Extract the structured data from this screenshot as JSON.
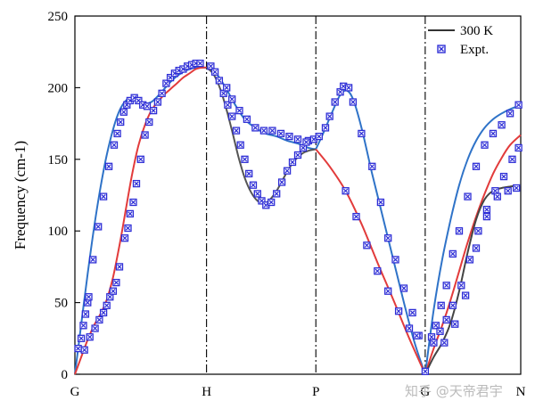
{
  "chart_data": {
    "type": "line",
    "title": "",
    "xlabel": "",
    "ylabel": "Frequency (cm-1)",
    "ylim": [
      0,
      250
    ],
    "xlim": [
      0,
      4.2
    ],
    "yticks": [
      0,
      50,
      100,
      150,
      200,
      250
    ],
    "high_symmetry_points": [
      {
        "label": "G",
        "x": 0.0
      },
      {
        "label": "H",
        "x": 1.24
      },
      {
        "label": "P",
        "x": 2.27
      },
      {
        "label": "G",
        "x": 3.3
      },
      {
        "label": "N",
        "x": 4.2
      }
    ],
    "grid": false,
    "legend_position": "top-right",
    "legend": [
      {
        "label": "300 K",
        "kind": "line",
        "color": "#333333"
      },
      {
        "label": "Expt.",
        "kind": "marker",
        "color": "#2d2dd6"
      }
    ],
    "series": [
      {
        "name": "300 K",
        "color": "#2f73c8",
        "x": [
          0,
          0.06,
          0.12,
          0.18,
          0.24,
          0.3,
          0.36,
          0.42,
          0.48,
          0.54,
          0.6,
          0.66,
          0.72,
          0.78,
          0.84,
          0.9,
          0.96,
          1.02,
          1.08,
          1.14,
          1.2,
          1.24
        ],
        "y": [
          0,
          35,
          70,
          102,
          130,
          153,
          171,
          184,
          191,
          193,
          191,
          189,
          190,
          194,
          199,
          204,
          208,
          211,
          213,
          214,
          214,
          214
        ]
      },
      {
        "name": "300 K",
        "color": "#e23b3b",
        "x": [
          0,
          0.06,
          0.12,
          0.18,
          0.24,
          0.3,
          0.36,
          0.42,
          0.48,
          0.54,
          0.6,
          0.66,
          0.72,
          0.78,
          0.84,
          0.9,
          0.96,
          1.02,
          1.08,
          1.14,
          1.2,
          1.24
        ],
        "y": [
          0,
          12,
          24,
          34,
          42,
          52,
          68,
          90,
          115,
          140,
          160,
          174,
          184,
          190,
          195,
          199,
          203,
          207,
          210,
          213,
          214,
          214
        ]
      },
      {
        "name": "300 K",
        "color": "#2f73c8",
        "x": [
          1.24,
          1.33,
          1.42,
          1.51,
          1.6,
          1.7,
          1.8,
          1.9,
          2.0,
          2.1,
          2.2,
          2.27
        ],
        "y": [
          214,
          210,
          200,
          188,
          178,
          172,
          168,
          166,
          163,
          161,
          158,
          157
        ]
      },
      {
        "name": "300 K",
        "color": "#555555",
        "x": [
          1.24,
          1.3,
          1.36,
          1.42,
          1.48,
          1.54,
          1.6,
          1.66,
          1.72,
          1.78,
          1.84,
          1.9,
          1.96,
          2.02,
          2.08,
          2.14,
          2.2,
          2.27
        ],
        "y": [
          214,
          210,
          201,
          187,
          170,
          152,
          137,
          127,
          121,
          119,
          122,
          128,
          136,
          144,
          150,
          154,
          156,
          157
        ]
      },
      {
        "name": "300 K",
        "color": "#2f73c8",
        "x": [
          2.27,
          2.35,
          2.43,
          2.5,
          2.56,
          2.62,
          2.7,
          2.8,
          2.9,
          3.0,
          3.1,
          3.2,
          3.3
        ],
        "y": [
          157,
          170,
          184,
          195,
          198,
          192,
          172,
          140,
          110,
          80,
          50,
          22,
          0
        ]
      },
      {
        "name": "300 K",
        "color": "#e23b3b",
        "x": [
          2.27,
          2.4,
          2.55,
          2.7,
          2.85,
          3.0,
          3.15,
          3.3
        ],
        "y": [
          157,
          145,
          128,
          105,
          78,
          52,
          25,
          0
        ]
      },
      {
        "name": "300 K",
        "color": "#2f73c8",
        "x": [
          3.3,
          3.38,
          3.46,
          3.54,
          3.62,
          3.7,
          3.78,
          3.86,
          3.94,
          4.02,
          4.1,
          4.2
        ],
        "y": [
          0,
          45,
          80,
          108,
          132,
          150,
          163,
          172,
          178,
          182,
          185,
          188
        ]
      },
      {
        "name": "300 K",
        "color": "#e23b3b",
        "x": [
          3.3,
          3.38,
          3.46,
          3.54,
          3.62,
          3.7,
          3.78,
          3.86,
          3.94,
          4.02,
          4.1,
          4.2
        ],
        "y": [
          0,
          18,
          34,
          52,
          72,
          92,
          110,
          126,
          140,
          151,
          160,
          167
        ]
      },
      {
        "name": "300 K",
        "color": "#444444",
        "x": [
          3.3,
          3.38,
          3.46,
          3.54,
          3.62,
          3.7,
          3.78,
          3.86,
          3.94,
          4.02,
          4.1,
          4.2
        ],
        "y": [
          0,
          12,
          22,
          36,
          58,
          85,
          108,
          122,
          128,
          130,
          131,
          132
        ]
      }
    ],
    "expt": {
      "name": "Expt.",
      "color": "#2d2dd6",
      "points": [
        [
          0.03,
          18
        ],
        [
          0.06,
          25
        ],
        [
          0.08,
          34
        ],
        [
          0.1,
          42
        ],
        [
          0.12,
          50
        ],
        [
          0.13,
          54
        ],
        [
          0.17,
          80
        ],
        [
          0.22,
          103
        ],
        [
          0.27,
          124
        ],
        [
          0.32,
          145
        ],
        [
          0.37,
          160
        ],
        [
          0.4,
          168
        ],
        [
          0.43,
          176
        ],
        [
          0.46,
          183
        ],
        [
          0.49,
          188
        ],
        [
          0.52,
          191
        ],
        [
          0.56,
          193
        ],
        [
          0.6,
          191
        ],
        [
          0.64,
          188
        ],
        [
          0.68,
          187
        ],
        [
          0.09,
          17
        ],
        [
          0.14,
          26
        ],
        [
          0.19,
          32
        ],
        [
          0.23,
          38
        ],
        [
          0.27,
          43
        ],
        [
          0.3,
          48
        ],
        [
          0.33,
          54
        ],
        [
          0.36,
          58
        ],
        [
          0.39,
          64
        ],
        [
          0.42,
          75
        ],
        [
          0.47,
          95
        ],
        [
          0.5,
          102
        ],
        [
          0.52,
          112
        ],
        [
          0.55,
          120
        ],
        [
          0.58,
          133
        ],
        [
          0.62,
          150
        ],
        [
          0.66,
          167
        ],
        [
          0.7,
          176
        ],
        [
          0.74,
          184
        ],
        [
          0.78,
          190
        ],
        [
          0.82,
          196
        ],
        [
          0.86,
          203
        ],
        [
          0.9,
          207
        ],
        [
          0.94,
          210
        ],
        [
          0.98,
          212
        ],
        [
          1.02,
          213
        ],
        [
          1.06,
          215
        ],
        [
          1.1,
          216
        ],
        [
          1.14,
          217
        ],
        [
          1.18,
          217
        ],
        [
          1.28,
          215
        ],
        [
          1.32,
          211
        ],
        [
          1.36,
          205
        ],
        [
          1.4,
          196
        ],
        [
          1.44,
          188
        ],
        [
          1.48,
          180
        ],
        [
          1.52,
          170
        ],
        [
          1.56,
          160
        ],
        [
          1.6,
          150
        ],
        [
          1.64,
          140
        ],
        [
          1.68,
          132
        ],
        [
          1.72,
          126
        ],
        [
          1.76,
          121
        ],
        [
          1.8,
          118
        ],
        [
          1.85,
          120
        ],
        [
          1.9,
          126
        ],
        [
          1.95,
          134
        ],
        [
          2.0,
          142
        ],
        [
          2.05,
          148
        ],
        [
          2.1,
          153
        ],
        [
          2.15,
          158
        ],
        [
          2.2,
          163
        ],
        [
          1.43,
          200
        ],
        [
          1.48,
          192
        ],
        [
          1.55,
          184
        ],
        [
          1.62,
          178
        ],
        [
          1.7,
          172
        ],
        [
          1.78,
          170
        ],
        [
          1.86,
          170
        ],
        [
          1.94,
          168
        ],
        [
          2.02,
          166
        ],
        [
          2.1,
          164
        ],
        [
          2.18,
          162
        ],
        [
          2.25,
          164
        ],
        [
          2.3,
          166
        ],
        [
          2.36,
          172
        ],
        [
          2.4,
          180
        ],
        [
          2.45,
          190
        ],
        [
          2.5,
          197
        ],
        [
          2.53,
          201
        ],
        [
          2.58,
          200
        ],
        [
          2.62,
          190
        ],
        [
          2.7,
          168
        ],
        [
          2.8,
          145
        ],
        [
          2.88,
          120
        ],
        [
          2.95,
          95
        ],
        [
          3.02,
          80
        ],
        [
          3.1,
          60
        ],
        [
          3.18,
          43
        ],
        [
          3.24,
          27
        ],
        [
          3.3,
          2
        ],
        [
          2.55,
          128
        ],
        [
          2.65,
          110
        ],
        [
          2.75,
          90
        ],
        [
          2.85,
          72
        ],
        [
          2.95,
          58
        ],
        [
          3.05,
          44
        ],
        [
          3.15,
          32
        ],
        [
          3.22,
          27
        ],
        [
          3.36,
          26
        ],
        [
          3.4,
          34
        ],
        [
          3.45,
          48
        ],
        [
          3.5,
          62
        ],
        [
          3.56,
          84
        ],
        [
          3.62,
          100
        ],
        [
          3.7,
          124
        ],
        [
          3.78,
          145
        ],
        [
          3.86,
          160
        ],
        [
          3.94,
          168
        ],
        [
          4.02,
          174
        ],
        [
          4.1,
          182
        ],
        [
          4.18,
          188
        ],
        [
          3.38,
          22
        ],
        [
          3.44,
          30
        ],
        [
          3.5,
          38
        ],
        [
          3.56,
          48
        ],
        [
          3.64,
          62
        ],
        [
          3.72,
          80
        ],
        [
          3.8,
          100
        ],
        [
          3.88,
          115
        ],
        [
          3.96,
          128
        ],
        [
          4.04,
          138
        ],
        [
          4.12,
          150
        ],
        [
          4.18,
          158
        ],
        [
          3.48,
          22
        ],
        [
          3.58,
          35
        ],
        [
          3.68,
          55
        ],
        [
          3.78,
          88
        ],
        [
          3.88,
          110
        ],
        [
          3.98,
          124
        ],
        [
          4.08,
          128
        ],
        [
          4.16,
          130
        ]
      ]
    }
  },
  "watermark": "知乎 @天帝君宇"
}
